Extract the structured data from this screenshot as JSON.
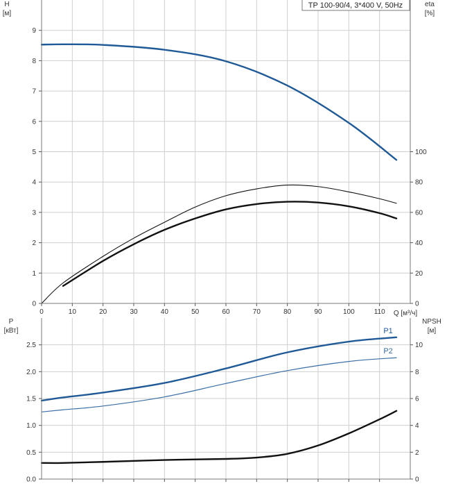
{
  "chart_data": [
    {
      "type": "line",
      "legend": "TP 100-90/4, 3*400 V, 50Hz",
      "legend_placement": "top-right",
      "grid": true,
      "xlabel": "Q [м³/ч]",
      "xlim": [
        0,
        120
      ],
      "x_ticks": [
        0,
        10,
        20,
        30,
        40,
        50,
        60,
        70,
        80,
        90,
        100,
        110
      ],
      "ylabel_left": [
        "H",
        "[м]"
      ],
      "ylim_left": [
        0,
        10
      ],
      "y_ticks_left": [
        0,
        1,
        2,
        3,
        4,
        5,
        6,
        7,
        8,
        9
      ],
      "ylabel_right": [
        "eta",
        "[%]"
      ],
      "ylim_right": [
        0,
        200
      ],
      "y_ticks_right": [
        0,
        20,
        40,
        60,
        80,
        100
      ],
      "series": [
        {
          "axis": "left",
          "color": "#1f5a96",
          "width": 2.4,
          "points": [
            [
              0,
              8.53
            ],
            [
              7,
              8.54
            ],
            [
              20,
              8.52
            ],
            [
              40,
              8.36
            ],
            [
              60,
              7.98
            ],
            [
              80,
              7.18
            ],
            [
              100,
              5.95
            ],
            [
              115.5,
              4.73
            ]
          ]
        },
        {
          "axis": "right",
          "color": "#111111",
          "width": 1.1,
          "points": [
            [
              0,
              0
            ],
            [
              7,
              13.5
            ],
            [
              20,
              31
            ],
            [
              30,
              43
            ],
            [
              40,
              53.5
            ],
            [
              50,
              63.5
            ],
            [
              60,
              71
            ],
            [
              70,
              75.5
            ],
            [
              80,
              78
            ],
            [
              90,
              77
            ],
            [
              100,
              73.5
            ],
            [
              110,
              69
            ],
            [
              115.5,
              66
            ]
          ]
        },
        {
          "axis": "right",
          "color": "#111111",
          "width": 2.4,
          "points": [
            [
              7,
              11.5
            ],
            [
              20,
              28
            ],
            [
              30,
              39
            ],
            [
              40,
              48.5
            ],
            [
              50,
              56
            ],
            [
              60,
              62
            ],
            [
              70,
              65.5
            ],
            [
              80,
              67
            ],
            [
              90,
              66.5
            ],
            [
              100,
              64
            ],
            [
              110,
              59.5
            ],
            [
              115.5,
              56
            ]
          ]
        }
      ]
    },
    {
      "type": "line",
      "grid": true,
      "xlim": [
        0,
        120
      ],
      "x_ticks": [
        10,
        20,
        30,
        40,
        50,
        60,
        70,
        80,
        90,
        100,
        110
      ],
      "ylabel_left": [
        "P",
        "[кВт]"
      ],
      "ylim_left": [
        0,
        3
      ],
      "y_ticks_left": [
        "0.0",
        "0.5",
        "1.0",
        "1.5",
        "2.0",
        "2.5"
      ],
      "ylabel_right": [
        "NPSH",
        "[м]"
      ],
      "ylim_right": [
        0,
        12
      ],
      "y_ticks_right": [
        0,
        2,
        4,
        6,
        8,
        10
      ],
      "series": [
        {
          "name": "P1",
          "axis": "left",
          "color": "#1f5a96",
          "width": 2.4,
          "points": [
            [
              0,
              1.46
            ],
            [
              7,
              1.52
            ],
            [
              20,
              1.61
            ],
            [
              40,
              1.79
            ],
            [
              60,
              2.06
            ],
            [
              80,
              2.36
            ],
            [
              100,
              2.56
            ],
            [
              115.5,
              2.64
            ]
          ]
        },
        {
          "name": "P2",
          "axis": "left",
          "color": "#3a6ea5",
          "width": 1.2,
          "points": [
            [
              0,
              1.25
            ],
            [
              7,
              1.29
            ],
            [
              20,
              1.36
            ],
            [
              40,
              1.53
            ],
            [
              60,
              1.78
            ],
            [
              80,
              2.02
            ],
            [
              100,
              2.19
            ],
            [
              115.5,
              2.26
            ]
          ]
        },
        {
          "axis": "right",
          "color": "#111111",
          "width": 2.4,
          "points": [
            [
              0,
              1.2
            ],
            [
              7,
              1.2
            ],
            [
              20,
              1.28
            ],
            [
              40,
              1.42
            ],
            [
              60,
              1.5
            ],
            [
              70,
              1.6
            ],
            [
              80,
              1.88
            ],
            [
              90,
              2.5
            ],
            [
              100,
              3.4
            ],
            [
              110,
              4.45
            ],
            [
              115.5,
              5.08
            ]
          ]
        }
      ]
    }
  ]
}
